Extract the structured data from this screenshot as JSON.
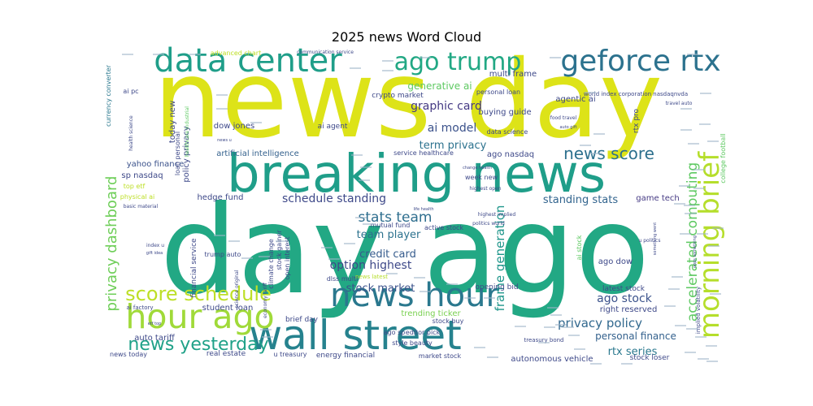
{
  "chart_data": {
    "type": "wordcloud",
    "title": "2025 news Word Cloud",
    "background": "#ffffff",
    "colormap": "viridis",
    "words": [
      {
        "text": "news day",
        "weight": 100,
        "color": "#dde318"
      },
      {
        "text": "day ago",
        "weight": 96,
        "color": "#22a884"
      },
      {
        "text": "breaking news",
        "weight": 52,
        "color": "#1f9e89"
      },
      {
        "text": "wall street",
        "weight": 40,
        "color": "#26828e"
      },
      {
        "text": "news hour",
        "weight": 32,
        "color": "#2a788e"
      },
      {
        "text": "hour ago",
        "weight": 33,
        "color": "#a0da39"
      },
      {
        "text": "data center",
        "weight": 33,
        "color": "#1f9e89"
      },
      {
        "text": "geforce rtx",
        "weight": 32,
        "color": "#2c728e"
      },
      {
        "text": "ago trump",
        "weight": 29,
        "color": "#22a884"
      },
      {
        "text": "morning brief",
        "weight": 30,
        "color": "#b5de2b"
      },
      {
        "text": "score schedule",
        "weight": 22,
        "color": "#bddf26"
      },
      {
        "text": "news yesterday",
        "weight": 20,
        "color": "#1fa188"
      },
      {
        "text": "news score",
        "weight": 17,
        "color": "#2d708e"
      },
      {
        "text": "privacy dashboard",
        "weight": 15,
        "color": "#6ece58"
      },
      {
        "text": "accelerated computing",
        "weight": 14,
        "color": "#5ec962"
      },
      {
        "text": "frame generation",
        "weight": 13,
        "color": "#1f968b"
      },
      {
        "text": "privacy policy",
        "weight": 13,
        "color": "#31688e"
      },
      {
        "text": "stats team",
        "weight": 14,
        "color": "#2e6e8e"
      },
      {
        "text": "ago stock",
        "weight": 12,
        "color": "#3b528b"
      },
      {
        "text": "ai model",
        "weight": 12,
        "color": "#3b528b"
      },
      {
        "text": "graphic card",
        "weight": 12,
        "color": "#443983"
      },
      {
        "text": "term privacy",
        "weight": 12,
        "color": "#2c728e"
      },
      {
        "text": "schedule standing",
        "weight": 12,
        "color": "#3e4989"
      },
      {
        "text": "standing stats",
        "weight": 11,
        "color": "#32648e"
      },
      {
        "text": "option highest",
        "weight": 12,
        "color": "#3e4989"
      },
      {
        "text": "stock market",
        "weight": 11,
        "color": "#3b528b"
      },
      {
        "text": "personal finance",
        "weight": 11,
        "color": "#34618d"
      },
      {
        "text": "rtx series",
        "weight": 11,
        "color": "#2a788e"
      },
      {
        "text": "credit card",
        "weight": 11,
        "color": "#365c8d"
      },
      {
        "text": "team player",
        "weight": 11,
        "color": "#2c728e"
      },
      {
        "text": "generative ai",
        "weight": 10,
        "color": "#5ec962"
      },
      {
        "text": "artificial intelligence",
        "weight": 9,
        "color": "#34618d"
      },
      {
        "text": "autonomous vehicle",
        "weight": 9,
        "color": "#3e4989"
      },
      {
        "text": "right reserved",
        "weight": 8,
        "color": "#3e4989"
      },
      {
        "text": "yahoo finance",
        "weight": 8,
        "color": "#3b528b"
      },
      {
        "text": "sp nasdaq",
        "weight": 8,
        "color": "#3e4989"
      },
      {
        "text": "hedge fund",
        "weight": 8,
        "color": "#3e4989"
      },
      {
        "text": "game tech",
        "weight": 8,
        "color": "#443983"
      },
      {
        "text": "latest stock",
        "weight": 8,
        "color": "#3e4989"
      },
      {
        "text": "ago dow",
        "weight": 8,
        "color": "#3e4989"
      },
      {
        "text": "ago nasdaq",
        "weight": 8,
        "color": "#3e4989"
      },
      {
        "text": "agentic ai",
        "weight": 8,
        "color": "#3e4989"
      },
      {
        "text": "dow jones",
        "weight": 8,
        "color": "#3e4989"
      },
      {
        "text": "ai agent",
        "weight": 7,
        "color": "#3e4989"
      },
      {
        "text": "student loan",
        "weight": 8,
        "color": "#3e4989"
      },
      {
        "text": "opening bid",
        "weight": 7,
        "color": "#3e4989"
      },
      {
        "text": "auto tariff",
        "weight": 8,
        "color": "#3e4989"
      },
      {
        "text": "real estate",
        "weight": 7,
        "color": "#3e4989"
      },
      {
        "text": "energy financial",
        "weight": 7,
        "color": "#3e4989"
      },
      {
        "text": "market stock",
        "weight": 6,
        "color": "#3e4989"
      },
      {
        "text": "stock loser",
        "weight": 7,
        "color": "#3e4989"
      },
      {
        "text": "trending ticker",
        "weight": 8,
        "color": "#7ad151"
      },
      {
        "text": "brief day",
        "weight": 7,
        "color": "#3e4989"
      },
      {
        "text": "u treasury",
        "weight": 6,
        "color": "#3e4989"
      },
      {
        "text": "stock buy",
        "weight": 6,
        "color": "#3e4989"
      },
      {
        "text": "news today",
        "weight": 6,
        "color": "#3e4989"
      },
      {
        "text": "multi frame",
        "weight": 8,
        "color": "#3e4989"
      },
      {
        "text": "buying guide",
        "weight": 8,
        "color": "#3e4989"
      },
      {
        "text": "crypto market",
        "weight": 7,
        "color": "#3e4989"
      },
      {
        "text": "personal loan",
        "weight": 6,
        "color": "#3e4989"
      },
      {
        "text": "data science",
        "weight": 6,
        "color": "#3e4989"
      },
      {
        "text": "service healthcare",
        "weight": 6,
        "color": "#3e4989"
      },
      {
        "text": "week new",
        "weight": 6,
        "color": "#3e4989"
      },
      {
        "text": "mutual fund",
        "weight": 6,
        "color": "#3e4989"
      },
      {
        "text": "active stock",
        "weight": 6,
        "color": "#3e4989"
      },
      {
        "text": "stock gainer",
        "weight": 6,
        "color": "#3e4989"
      },
      {
        "text": "open interest",
        "weight": 6,
        "color": "#3e4989"
      },
      {
        "text": "climate change",
        "weight": 6,
        "color": "#3e4989"
      },
      {
        "text": "financial service",
        "weight": 6,
        "color": "#3e4989"
      },
      {
        "text": "policy privacy",
        "weight": 7,
        "color": "#3e4989"
      },
      {
        "text": "today new",
        "weight": 7,
        "color": "#3e4989"
      },
      {
        "text": "loan personal",
        "weight": 6,
        "color": "#3e4989"
      },
      {
        "text": "trump auto",
        "weight": 6,
        "color": "#3e4989"
      },
      {
        "text": "editor pick",
        "weight": 6,
        "color": "#3e4989"
      },
      {
        "text": "ago sp",
        "weight": 6,
        "color": "#3e4989"
      },
      {
        "text": "style beauty",
        "weight": 6,
        "color": "#3e4989"
      },
      {
        "text": "dlss multi",
        "weight": 6,
        "color": "#3e4989"
      },
      {
        "text": "news latest",
        "weight": 6,
        "color": "#b5de2b"
      },
      {
        "text": "ai pc",
        "weight": 6,
        "color": "#3e4989"
      },
      {
        "text": "top etf",
        "weight": 6,
        "color": "#bddf26"
      },
      {
        "text": "physical ai",
        "weight": 6,
        "color": "#bddf26"
      },
      {
        "text": "ai factory",
        "weight": 6,
        "color": "#3e4989"
      },
      {
        "text": "basic material",
        "weight": 5,
        "color": "#3e4989"
      },
      {
        "text": "index u",
        "weight": 5,
        "color": "#3e4989"
      },
      {
        "text": "gift idea",
        "weight": 5,
        "color": "#3e4989"
      },
      {
        "text": "etf top",
        "weight": 5,
        "color": "#3e4989"
      },
      {
        "text": "currency converter",
        "weight": 6,
        "color": "#2a788e"
      },
      {
        "text": "health science",
        "weight": 5,
        "color": "#3e4989"
      },
      {
        "text": "advanced chart",
        "weight": 6,
        "color": "#bddf26"
      },
      {
        "text": "communication service",
        "weight": 5,
        "color": "#3e4989"
      },
      {
        "text": "world index corporation nasdaqnvda",
        "weight": 5,
        "color": "#3e4989"
      },
      {
        "text": "travel auto",
        "weight": 5,
        "color": "#3e4989"
      },
      {
        "text": "rtx pro",
        "weight": 7,
        "color": "#3e4989"
      },
      {
        "text": "college football",
        "weight": 6,
        "color": "#5ec962"
      },
      {
        "text": "implied volatility",
        "weight": 5,
        "color": "#3e4989"
      },
      {
        "text": "treasury bond",
        "weight": 5,
        "color": "#3e4989"
      },
      {
        "text": "economy tariff",
        "weight": 5,
        "color": "#3e4989"
      },
      {
        "text": "science original",
        "weight": 5,
        "color": "#3e4989"
      },
      {
        "text": "food travel",
        "weight": 5,
        "color": "#3e4989"
      },
      {
        "text": "auto gift",
        "weight": 5,
        "color": "#3e4989"
      },
      {
        "text": "highest implied",
        "weight": 5,
        "color": "#3e4989"
      },
      {
        "text": "politics world",
        "weight": 5,
        "color": "#3e4989"
      },
      {
        "text": "highest open",
        "weight": 5,
        "color": "#3e4989"
      },
      {
        "text": "change health",
        "weight": 5,
        "color": "#3e4989"
      },
      {
        "text": "u politics",
        "weight": 5,
        "color": "#3e4989"
      },
      {
        "text": "oops something",
        "weight": 5,
        "color": "#3e4989"
      },
      {
        "text": "ai stock",
        "weight": 6,
        "color": "#5ec962"
      },
      {
        "text": "news u",
        "weight": 5,
        "color": "#3e4989"
      },
      {
        "text": "healthcare industrial",
        "weight": 5,
        "color": "#5ec962"
      },
      {
        "text": "life health",
        "weight": 5,
        "color": "#3e4989"
      },
      {
        "text": "something went",
        "weight": 5,
        "color": "#3e4989"
      }
    ]
  }
}
